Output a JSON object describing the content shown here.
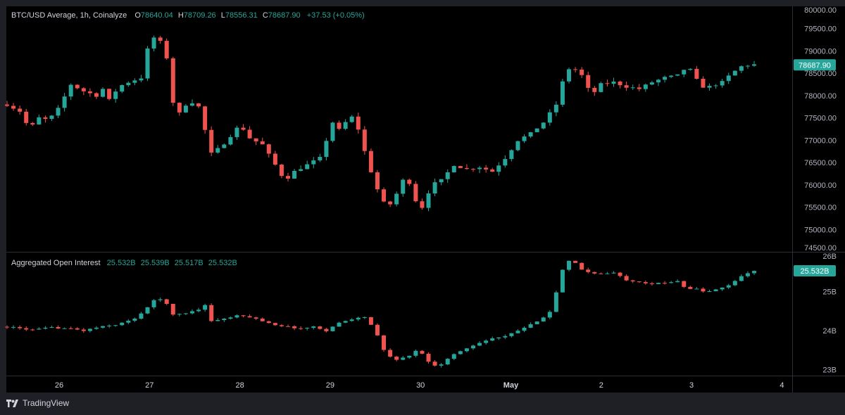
{
  "colors": {
    "background": "#000000",
    "frame": "#1f2026",
    "up": "#26a69a",
    "down": "#ef5350",
    "text": "#d1d4dc"
  },
  "price_legend": {
    "symbol": "BTC/USD Average, 1h, Coinalyze",
    "o_label": "O",
    "o": "78640.04",
    "h_label": "H",
    "h": "78709.26",
    "l_label": "L",
    "l": "78556.31",
    "c_label": "C",
    "c": "78687.90",
    "change": "+37.53 (+0.05%)"
  },
  "oi_legend": {
    "title": "Aggregated Open Interest",
    "o": "25.532B",
    "h": "25.539B",
    "l": "25.517B",
    "c": "25.532B"
  },
  "branding": {
    "logo_icon": "tradingview-logo-icon",
    "text": "TradingView"
  },
  "chart_data": [
    {
      "type": "candlestick",
      "name": "BTC/USD Average, 1h",
      "ylim": [
        74500,
        80000
      ],
      "yticks": [
        "80000.00",
        "79500.00",
        "79000.00",
        "78500.00",
        "78000.00",
        "77500.00",
        "77000.00",
        "76500.00",
        "76000.00",
        "75500.00",
        "75000.00",
        "74500.00"
      ],
      "ytick_values": [
        80000,
        79500,
        79000,
        78500,
        78000,
        77500,
        77000,
        76500,
        76000,
        75500,
        75000,
        74500
      ],
      "last_value_label": "78687.90",
      "last_value": 78687.9,
      "x_labels": [
        "26",
        "27",
        "28",
        "29",
        "30",
        "May",
        "2",
        "3",
        "4"
      ],
      "close_path": [
        [
          0,
          77800
        ],
        [
          2,
          77650
        ],
        [
          3.5,
          77250
        ],
        [
          5,
          77500
        ],
        [
          6.5,
          77450
        ],
        [
          8,
          77700
        ],
        [
          10,
          78250
        ],
        [
          12,
          78100
        ],
        [
          14,
          78000
        ],
        [
          15,
          78150
        ],
        [
          16,
          77900
        ],
        [
          17.5,
          78200
        ],
        [
          19,
          78300
        ],
        [
          21,
          78400
        ],
        [
          22.5,
          79350
        ],
        [
          24,
          79200
        ],
        [
          25,
          78850
        ],
        [
          26,
          77850
        ],
        [
          27,
          77600
        ],
        [
          28.5,
          77900
        ],
        [
          30,
          77750
        ],
        [
          32,
          76700
        ],
        [
          33.5,
          76850
        ],
        [
          35,
          77100
        ],
        [
          36.5,
          77350
        ],
        [
          38,
          77050
        ],
        [
          40,
          76900
        ],
        [
          42,
          76450
        ],
        [
          43.5,
          76100
        ],
        [
          45,
          76300
        ],
        [
          47,
          76450
        ],
        [
          49,
          76600
        ],
        [
          51,
          77400
        ],
        [
          52.5,
          77150
        ],
        [
          53.5,
          77650
        ],
        [
          55,
          77250
        ],
        [
          56.5,
          76500
        ],
        [
          58,
          75900
        ],
        [
          59.5,
          75450
        ],
        [
          61,
          75800
        ],
        [
          62.5,
          76250
        ],
        [
          64,
          75650
        ],
        [
          65,
          75500
        ],
        [
          66.5,
          76000
        ],
        [
          68,
          76100
        ],
        [
          70,
          76450
        ],
        [
          72,
          76350
        ],
        [
          74,
          76400
        ],
        [
          76,
          76300
        ],
        [
          78,
          76600
        ],
        [
          80,
          77000
        ],
        [
          82,
          77150
        ],
        [
          84,
          77400
        ],
        [
          86,
          77800
        ],
        [
          87.5,
          78550
        ],
        [
          88.5,
          78650
        ],
        [
          90,
          78450
        ],
        [
          91.5,
          78000
        ],
        [
          93,
          78250
        ],
        [
          95,
          78300
        ],
        [
          97,
          78200
        ],
        [
          99,
          78150
        ],
        [
          101,
          78300
        ],
        [
          103,
          78400
        ],
        [
          105,
          78450
        ],
        [
          106.5,
          78650
        ],
        [
          107.5,
          78500
        ],
        [
          108.5,
          78200
        ],
        [
          110,
          78200
        ],
        [
          112,
          78300
        ],
        [
          113.5,
          78500
        ],
        [
          115,
          78650
        ],
        [
          116.5,
          78700
        ],
        [
          117.5,
          78688
        ]
      ]
    },
    {
      "type": "candlestick",
      "name": "Aggregated Open Interest",
      "ylim": [
        22.85,
        26.0
      ],
      "yticks": [
        "26B",
        "25B",
        "24B",
        "23B"
      ],
      "ytick_values": [
        26,
        25,
        24,
        23
      ],
      "last_value_label": "25.532B",
      "last_value": 25.532,
      "close_path": [
        [
          0,
          24.1
        ],
        [
          4,
          24.02
        ],
        [
          7,
          24.08
        ],
        [
          10,
          24.05
        ],
        [
          12,
          24.0
        ],
        [
          14,
          24.08
        ],
        [
          17,
          24.15
        ],
        [
          20,
          24.3
        ],
        [
          22,
          24.6
        ],
        [
          23.5,
          24.85
        ],
        [
          25,
          24.7
        ],
        [
          26,
          24.4
        ],
        [
          28,
          24.45
        ],
        [
          30,
          24.55
        ],
        [
          31,
          24.65
        ],
        [
          32,
          24.25
        ],
        [
          34,
          24.3
        ],
        [
          36,
          24.38
        ],
        [
          38,
          24.35
        ],
        [
          40,
          24.25
        ],
        [
          42,
          24.15
        ],
        [
          44,
          24.1
        ],
        [
          46,
          24.05
        ],
        [
          48,
          24.1
        ],
        [
          50,
          24.0
        ],
        [
          52,
          24.2
        ],
        [
          54,
          24.3
        ],
        [
          56,
          24.35
        ],
        [
          57.5,
          24.05
        ],
        [
          59,
          23.5
        ],
        [
          60.5,
          23.25
        ],
        [
          62,
          23.3
        ],
        [
          63.5,
          23.4
        ],
        [
          64.5,
          23.55
        ],
        [
          65.5,
          23.3
        ],
        [
          66.5,
          23.1
        ],
        [
          68,
          23.15
        ],
        [
          70,
          23.4
        ],
        [
          72,
          23.55
        ],
        [
          74,
          23.7
        ],
        [
          76,
          23.8
        ],
        [
          78,
          23.85
        ],
        [
          80,
          24.0
        ],
        [
          82,
          24.15
        ],
        [
          84,
          24.35
        ],
        [
          85.5,
          24.55
        ],
        [
          86.5,
          25.4
        ],
        [
          87.5,
          25.7
        ],
        [
          88.5,
          25.85
        ],
        [
          89.5,
          25.6
        ],
        [
          91,
          25.5
        ],
        [
          93,
          25.45
        ],
        [
          95,
          25.48
        ],
        [
          97,
          25.3
        ],
        [
          99,
          25.25
        ],
        [
          101,
          25.2
        ],
        [
          103,
          25.22
        ],
        [
          105,
          25.28
        ],
        [
          106.5,
          25.05
        ],
        [
          107.5,
          25.1
        ],
        [
          109,
          25.0
        ],
        [
          110.5,
          25.02
        ],
        [
          112,
          25.1
        ],
        [
          113.5,
          25.2
        ],
        [
          115,
          25.4
        ],
        [
          116.5,
          25.52
        ],
        [
          117.5,
          25.532
        ]
      ]
    }
  ]
}
